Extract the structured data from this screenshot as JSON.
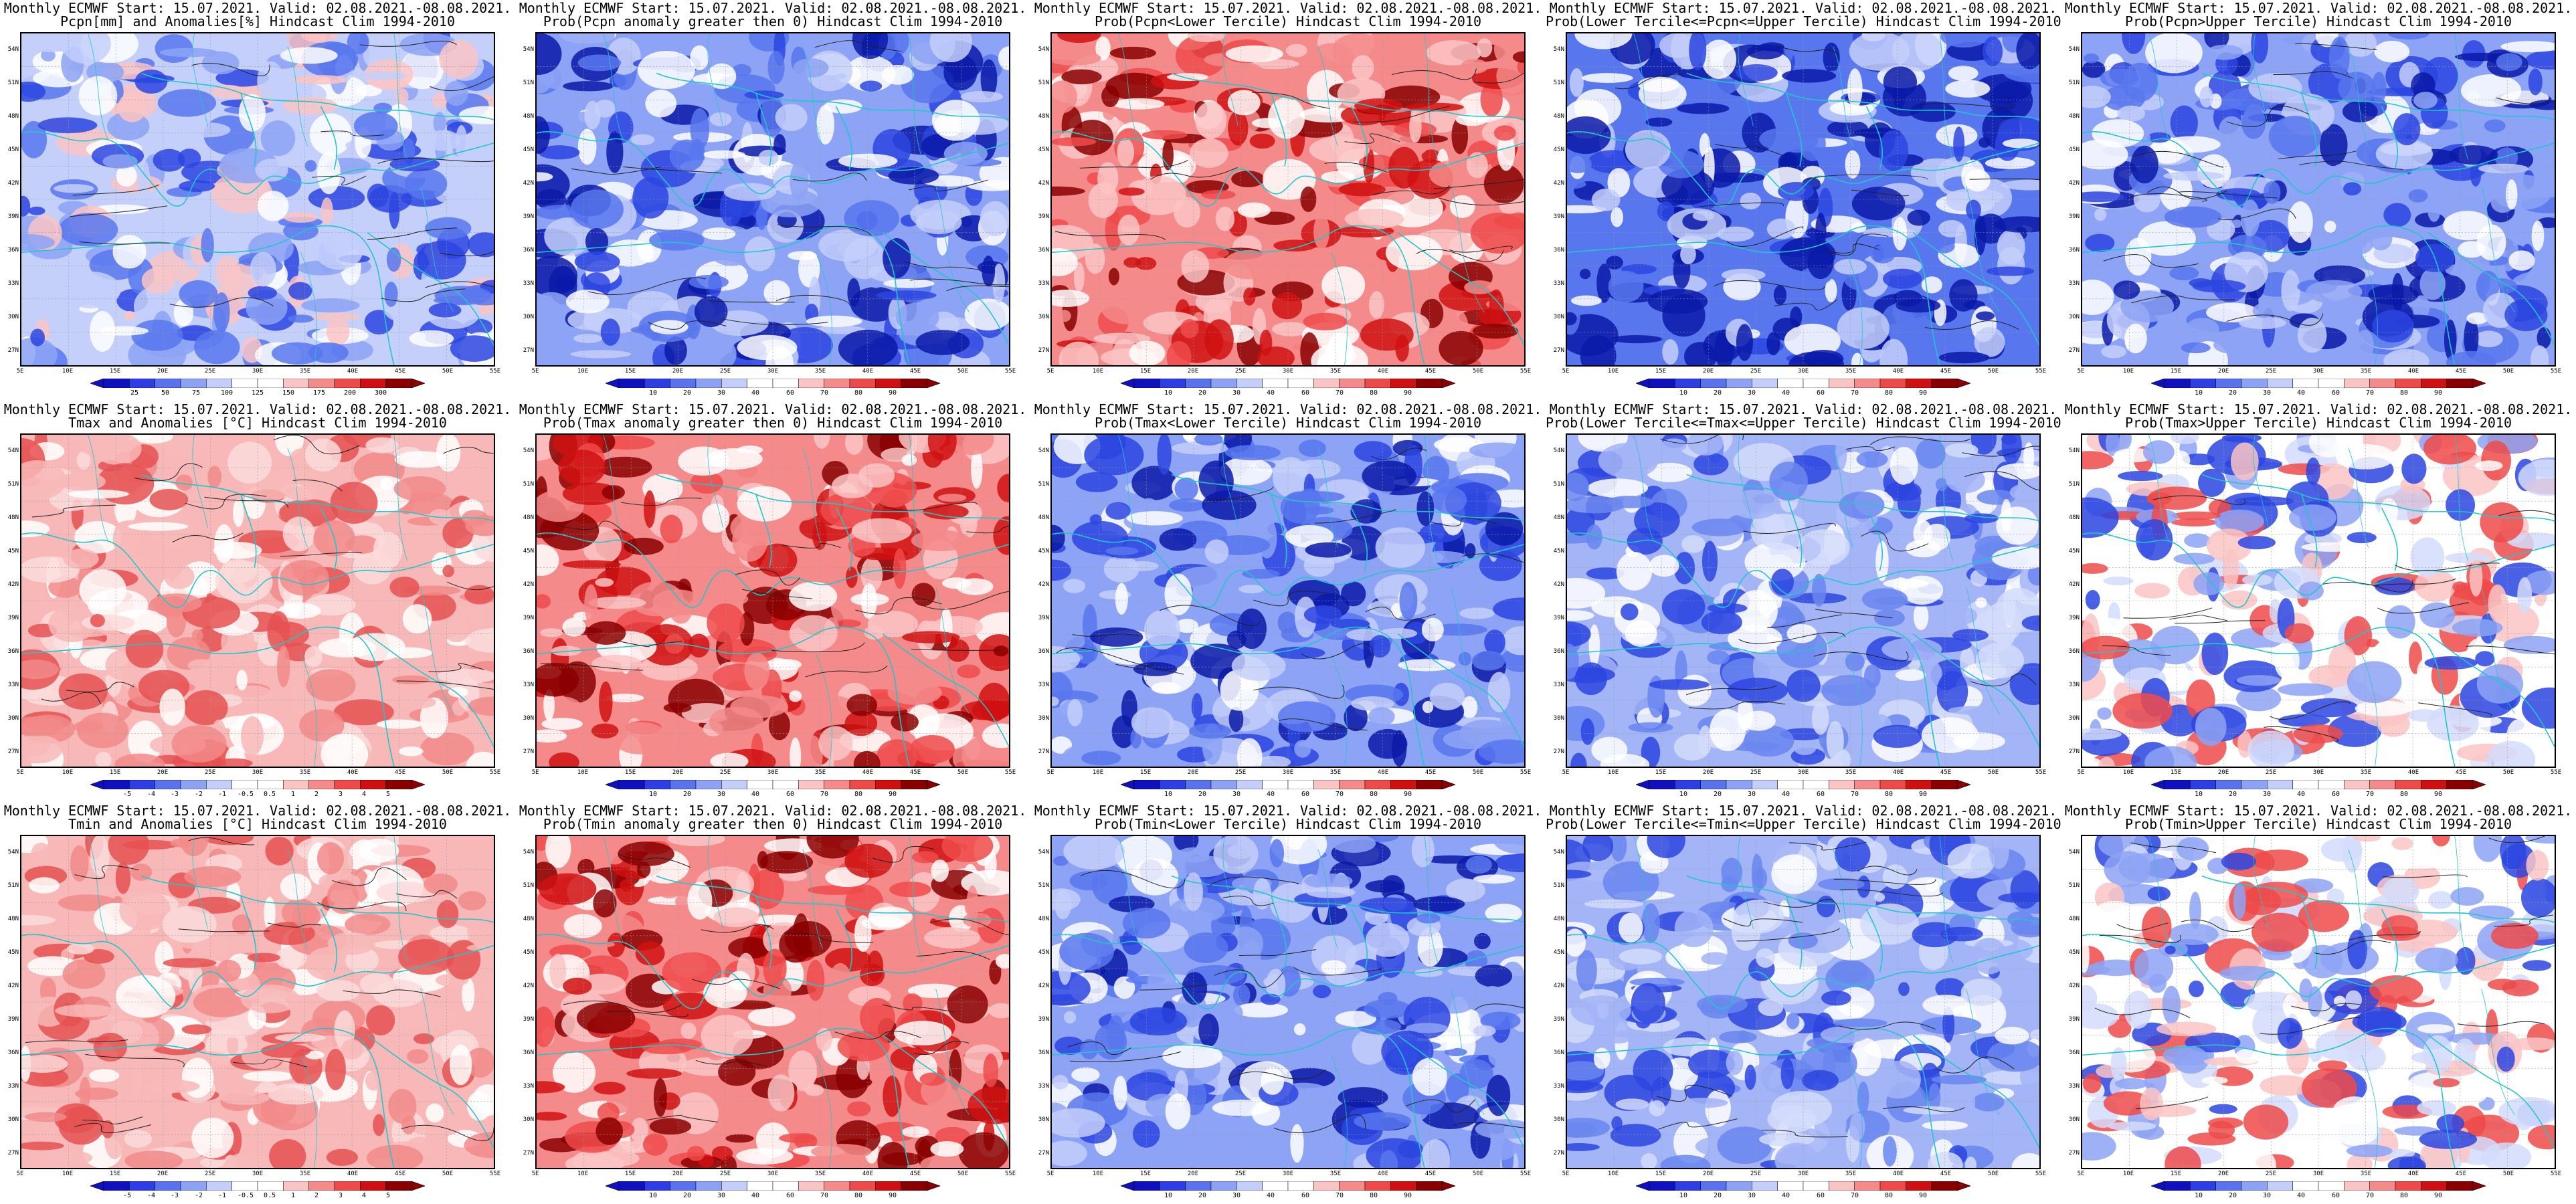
{
  "panels": [
    {
      "title1": "Monthly ECMWF Start: 15.07.2021. Valid: 02.08.2021.-08.08.2021.",
      "title2": "Pcpn[mm] and Anomalies[%] Hindcast Clim 1994-2010",
      "scheme": "anomaly_precip",
      "cbar_labels": [
        "25",
        "50",
        "75",
        "100",
        "125",
        "150",
        "175",
        "200",
        "300"
      ]
    },
    {
      "title1": "Monthly ECMWF Start: 15.07.2021. Valid: 02.08.2021.-08.08.2021.",
      "title2": "Prob(Pcpn anomaly greater then 0) Hindcast Clim 1994-2010",
      "scheme": "blue",
      "cbar_labels": [
        "10",
        "20",
        "30",
        "40",
        "60",
        "70",
        "80",
        "90"
      ]
    },
    {
      "title1": "Monthly ECMWF Start: 15.07.2021. Valid: 02.08.2021.-08.08.2021.",
      "title2": "Prob(Pcpn<Lower Tercile) Hindcast Clim 1994-2010",
      "scheme": "red",
      "cbar_labels": [
        "10",
        "20",
        "30",
        "40",
        "60",
        "70",
        "80",
        "90"
      ]
    },
    {
      "title1": "Monthly ECMWF Start: 15.07.2021. Valid: 02.08.2021.-08.08.2021.",
      "title2": "Prob(Lower Tercile<=Pcpn<=Upper Tercile) Hindcast Clim 1994-2010",
      "scheme": "deepblue",
      "cbar_labels": [
        "10",
        "20",
        "30",
        "40",
        "60",
        "70",
        "80",
        "90"
      ]
    },
    {
      "title1": "Monthly ECMWF Start: 15.07.2021. Valid: 02.08.2021.-08.08.2021.",
      "title2": "Prob(Pcpn>Upper Tercile) Hindcast Clim 1994-2010",
      "scheme": "blue",
      "cbar_labels": [
        "10",
        "20",
        "30",
        "40",
        "60",
        "70",
        "80",
        "90"
      ]
    },
    {
      "title1": "Monthly ECMWF Start: 15.07.2021. Valid: 02.08.2021.-08.08.2021.",
      "title2": "Tmax and Anomalies [°C] Hindcast Clim 1994-2010",
      "scheme": "lightred",
      "cbar_labels": [
        "-5",
        "-4",
        "-3",
        "-2",
        "-1",
        "-0.5",
        "0.5",
        "1",
        "2",
        "3",
        "4",
        "5"
      ]
    },
    {
      "title1": "Monthly ECMWF Start: 15.07.2021. Valid: 02.08.2021.-08.08.2021.",
      "title2": "Prob(Tmax anomaly greater then 0) Hindcast Clim 1994-2010",
      "scheme": "red",
      "cbar_labels": [
        "10",
        "20",
        "30",
        "40",
        "60",
        "70",
        "80",
        "90"
      ]
    },
    {
      "title1": "Monthly ECMWF Start: 15.07.2021. Valid: 02.08.2021.-08.08.2021.",
      "title2": "Prob(Tmax<Lower Tercile) Hindcast Clim 1994-2010",
      "scheme": "blue",
      "cbar_labels": [
        "10",
        "20",
        "30",
        "40",
        "60",
        "70",
        "80",
        "90"
      ]
    },
    {
      "title1": "Monthly ECMWF Start: 15.07.2021. Valid: 02.08.2021.-08.08.2021.",
      "title2": "Prob(Lower Tercile<=Tmax<=Upper Tercile) Hindcast Clim 1994-2010",
      "scheme": "lightblue",
      "cbar_labels": [
        "10",
        "20",
        "30",
        "40",
        "60",
        "70",
        "80",
        "90"
      ]
    },
    {
      "title1": "Monthly ECMWF Start: 15.07.2021. Valid: 02.08.2021.-08.08.2021.",
      "title2": "Prob(Tmax>Upper Tercile) Hindcast Clim 1994-2010",
      "scheme": "mixed",
      "cbar_labels": [
        "10",
        "20",
        "30",
        "40",
        "60",
        "70",
        "80",
        "90"
      ]
    },
    {
      "title1": "Monthly ECMWF Start: 15.07.2021. Valid: 02.08.2021.-08.08.2021.",
      "title2": "Tmin and Anomalies [°C] Hindcast Clim 1994-2010",
      "scheme": "lightred",
      "cbar_labels": [
        "-5",
        "-4",
        "-3",
        "-2",
        "-1",
        "-0.5",
        "0.5",
        "1",
        "2",
        "3",
        "4",
        "5"
      ]
    },
    {
      "title1": "Monthly ECMWF Start: 15.07.2021. Valid: 02.08.2021.-08.08.2021.",
      "title2": "Prob(Tmin anomaly greater then 0) Hindcast Clim 1994-2010",
      "scheme": "red",
      "cbar_labels": [
        "10",
        "20",
        "30",
        "40",
        "60",
        "70",
        "80",
        "90"
      ]
    },
    {
      "title1": "Monthly ECMWF Start: 15.07.2021. Valid: 02.08.2021.-08.08.2021.",
      "title2": "Prob(Tmin<Lower Tercile) Hindcast Clim 1994-2010",
      "scheme": "blue",
      "cbar_labels": [
        "10",
        "20",
        "30",
        "40",
        "60",
        "70",
        "80",
        "90"
      ]
    },
    {
      "title1": "Monthly ECMWF Start: 15.07.2021. Valid: 02.08.2021.-08.08.2021.",
      "title2": "Prob(Lower Tercile<=Tmin<=Upper Tercile) Hindcast Clim 1994-2010",
      "scheme": "lightblue",
      "cbar_labels": [
        "10",
        "20",
        "30",
        "40",
        "60",
        "70",
        "80",
        "90"
      ]
    },
    {
      "title1": "Monthly ECMWF Start: 15.07.2021. Valid: 02.08.2021.-08.08.2021.",
      "title2": "Prob(Tmin>Upper Tercile) Hindcast Clim 1994-2010",
      "scheme": "mixed",
      "cbar_labels": [
        "10",
        "20",
        "30",
        "40",
        "60",
        "70",
        "80",
        "90"
      ]
    }
  ],
  "lat_labels": [
    "54N",
    "51N",
    "48N",
    "45N",
    "42N",
    "39N",
    "36N",
    "33N",
    "30N",
    "27N"
  ],
  "lon_labels": [
    "5E",
    "10E",
    "15E",
    "20E",
    "25E",
    "30E",
    "35E",
    "40E",
    "45E",
    "50E",
    "55E"
  ],
  "colors": {
    "coastline": "#21c6cc",
    "contour": "#222222",
    "border": "#000000",
    "scheme_blue": [
      "#0a1aa8",
      "#2b45e0",
      "#5877ef",
      "#8da3f5",
      "#c4cffa",
      "#ffffff"
    ],
    "scheme_red": [
      "#8a0000",
      "#d01010",
      "#ee4a4a",
      "#f58a8a",
      "#fac4c4",
      "#ffffff"
    ],
    "scheme_lightblue": [
      "#2b45e0",
      "#6a86f0",
      "#a3b4f7",
      "#d4dcfb",
      "#ffffff"
    ],
    "scheme_lightred": [
      "#e65050",
      "#f28a8a",
      "#f8b8b8",
      "#fbdada",
      "#ffffff"
    ],
    "colorbar_diverging": [
      "#1010c0",
      "#2d3ee6",
      "#5b72ef",
      "#8ea2f5",
      "#c4cefa",
      "#ffffff",
      "#ffffff",
      "#fac4c4",
      "#f58a8a",
      "#ee4a4a",
      "#d01010",
      "#8a0000"
    ]
  }
}
